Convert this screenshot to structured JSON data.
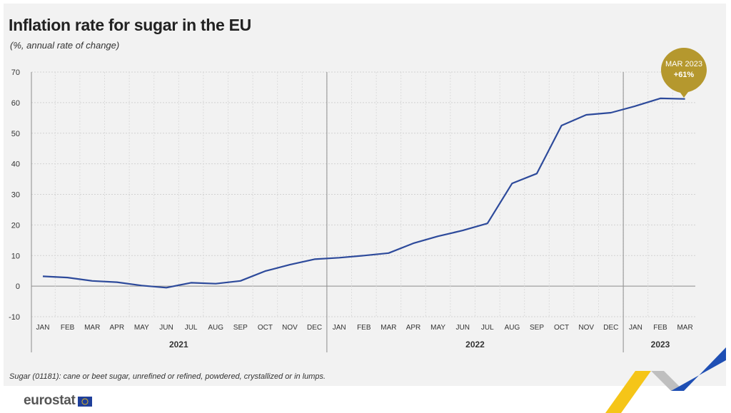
{
  "title": "Inflation rate for sugar in the EU",
  "subtitle": "(%, annual rate of change)",
  "footnote": "Sugar (01181): cane or beet sugar, unrefined or refined, powdered, crystallized or in lumps.",
  "logo_text": "eurostat",
  "callout": {
    "line1": "MAR 2023",
    "line2": "+61%"
  },
  "colors": {
    "line": "#2d4a9b",
    "callout": "#b5982e",
    "background": "#f2f2f2",
    "ribbon_yellow": "#f5c518",
    "ribbon_blue": "#1f4fb4",
    "ribbon_grey": "#bfbfbf"
  },
  "chart_data": {
    "type": "line",
    "title": "Inflation rate for sugar in the EU",
    "subtitle": "(%, annual rate of change)",
    "ylim": [
      -10,
      70
    ],
    "yticks": [
      -10,
      0,
      10,
      20,
      30,
      40,
      50,
      60,
      70
    ],
    "grid": true,
    "categories": [
      "JAN",
      "FEB",
      "MAR",
      "APR",
      "MAY",
      "JUN",
      "JUL",
      "AUG",
      "SEP",
      "OCT",
      "NOV",
      "DEC",
      "JAN",
      "FEB",
      "MAR",
      "APR",
      "MAY",
      "JUN",
      "JUL",
      "AUG",
      "SEP",
      "OCT",
      "NOV",
      "DEC",
      "JAN",
      "FEB",
      "MAR"
    ],
    "years": [
      {
        "label": "2021",
        "months": 12
      },
      {
        "label": "2022",
        "months": 12
      },
      {
        "label": "2023",
        "months": 3
      }
    ],
    "series": [
      {
        "values": [
          3.2,
          2.8,
          1.7,
          1.3,
          0.2,
          -0.5,
          1.1,
          0.8,
          1.7,
          4.9,
          7.0,
          8.8,
          9.3,
          10.0,
          10.8,
          14.0,
          16.3,
          18.2,
          20.5,
          33.6,
          36.8,
          52.5,
          56.0,
          56.7,
          58.9,
          61.4,
          61.2
        ]
      }
    ]
  }
}
